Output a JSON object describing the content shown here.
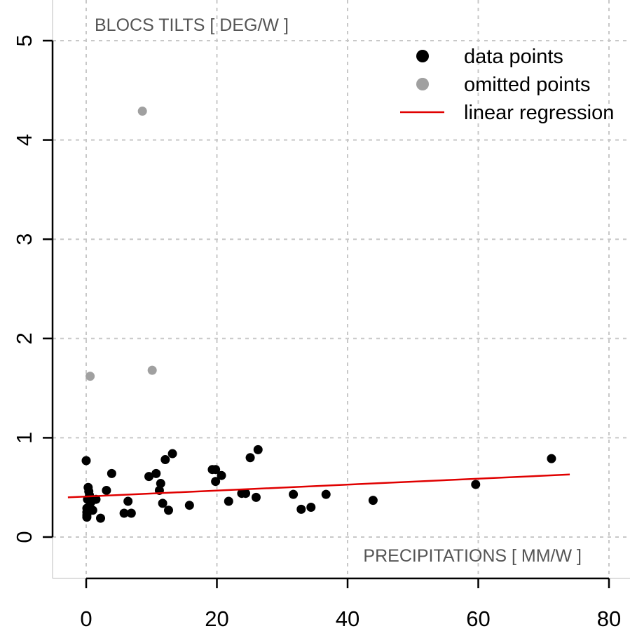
{
  "chart_data": {
    "type": "scatter",
    "title": "",
    "xlabel": "PRECIPITATIONS  [ MM/W ]",
    "ylabel": "BLOCS TILTS  [ DEG/W ]",
    "xlim": [
      -5,
      83
    ],
    "ylim": [
      -0.4,
      5.4
    ],
    "x_ticks": [
      0,
      20,
      40,
      60,
      80
    ],
    "y_ticks": [
      0,
      1,
      2,
      3,
      4,
      5
    ],
    "grid": true,
    "legend_position": "top-right",
    "series": [
      {
        "name": "data points",
        "color": "#000000",
        "marker": "circle",
        "points": [
          [
            0.0,
            0.77
          ],
          [
            0.1,
            0.29
          ],
          [
            0.1,
            0.25
          ],
          [
            0.1,
            0.22
          ],
          [
            0.1,
            0.2
          ],
          [
            0.2,
            0.38
          ],
          [
            0.3,
            0.5
          ],
          [
            0.4,
            0.46
          ],
          [
            0.5,
            0.42
          ],
          [
            0.7,
            0.35
          ],
          [
            1.0,
            0.27
          ],
          [
            1.5,
            0.38
          ],
          [
            2.2,
            0.19
          ],
          [
            3.1,
            0.47
          ],
          [
            3.9,
            0.64
          ],
          [
            5.8,
            0.24
          ],
          [
            6.4,
            0.36
          ],
          [
            6.9,
            0.24
          ],
          [
            9.6,
            0.61
          ],
          [
            10.7,
            0.64
          ],
          [
            11.2,
            0.47
          ],
          [
            11.4,
            0.54
          ],
          [
            11.7,
            0.34
          ],
          [
            12.1,
            0.78
          ],
          [
            12.6,
            0.27
          ],
          [
            13.2,
            0.84
          ],
          [
            15.8,
            0.32
          ],
          [
            19.3,
            0.68
          ],
          [
            19.8,
            0.56
          ],
          [
            19.8,
            0.68
          ],
          [
            20.7,
            0.62
          ],
          [
            21.8,
            0.36
          ],
          [
            23.8,
            0.44
          ],
          [
            24.4,
            0.44
          ],
          [
            25.1,
            0.8
          ],
          [
            26.0,
            0.4
          ],
          [
            26.3,
            0.88
          ],
          [
            31.7,
            0.43
          ],
          [
            32.9,
            0.28
          ],
          [
            34.4,
            0.3
          ],
          [
            36.7,
            0.43
          ],
          [
            43.9,
            0.37
          ],
          [
            59.6,
            0.53
          ],
          [
            71.2,
            0.79
          ]
        ]
      },
      {
        "name": "omitted points",
        "color": "#a0a0a0",
        "marker": "circle",
        "points": [
          [
            0.6,
            1.62
          ],
          [
            8.6,
            4.29
          ],
          [
            10.1,
            1.68
          ]
        ]
      },
      {
        "name": "linear regression",
        "color": "#e00000",
        "marker": "line",
        "x": [
          -2.8,
          74.0
        ],
        "y": [
          0.4,
          0.63
        ]
      }
    ]
  }
}
